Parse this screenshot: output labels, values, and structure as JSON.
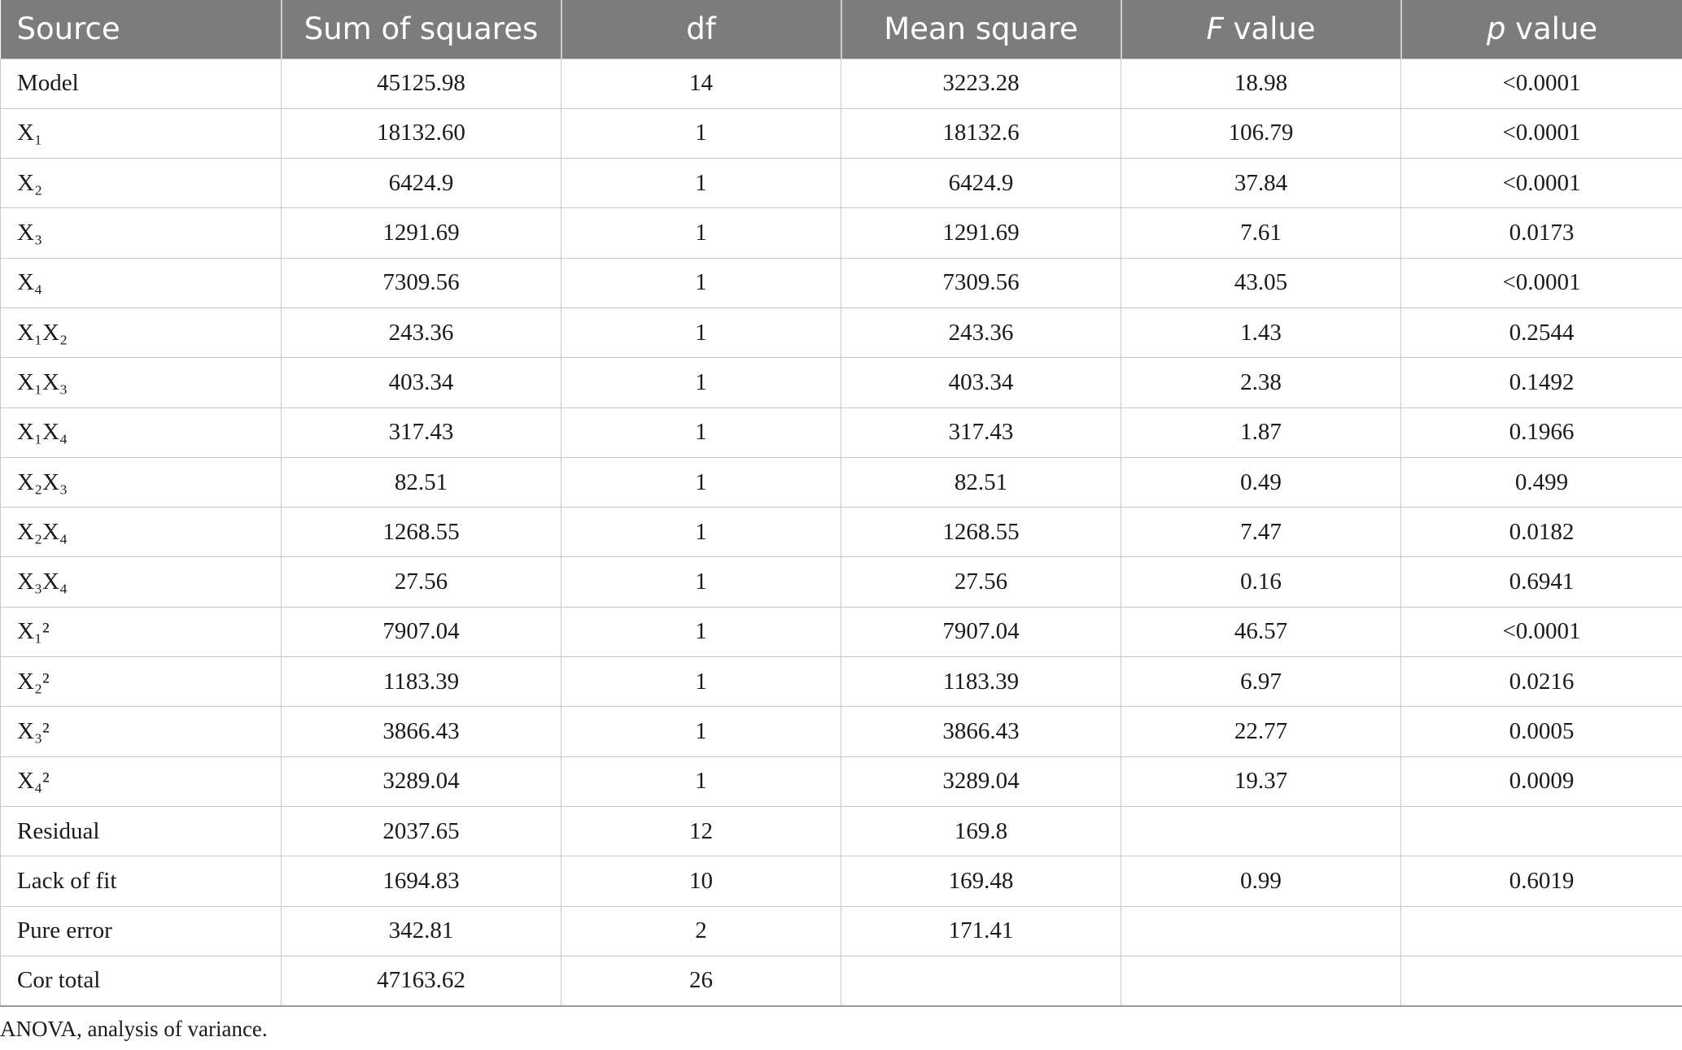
{
  "table": {
    "headers": {
      "source": "Source",
      "sum_of_squares": "Sum of squares",
      "df": "df",
      "mean_square": "Mean square",
      "f_italic": "F",
      "f_rest": " value",
      "p_italic": "p",
      "p_rest": " value"
    },
    "rows": [
      {
        "source": "Model",
        "ss": "45125.98",
        "df": "14",
        "ms": "3223.28",
        "f": "18.98",
        "p": "<0.0001"
      },
      {
        "source": "X₁",
        "ss": "18132.60",
        "df": "1",
        "ms": "18132.6",
        "f": "106.79",
        "p": "<0.0001"
      },
      {
        "source": "X₂",
        "ss": "6424.9",
        "df": "1",
        "ms": "6424.9",
        "f": "37.84",
        "p": "<0.0001"
      },
      {
        "source": "X₃",
        "ss": "1291.69",
        "df": "1",
        "ms": "1291.69",
        "f": "7.61",
        "p": "0.0173"
      },
      {
        "source": "X₄",
        "ss": "7309.56",
        "df": "1",
        "ms": "7309.56",
        "f": "43.05",
        "p": "<0.0001"
      },
      {
        "source": "X₁X₂",
        "ss": "243.36",
        "df": "1",
        "ms": "243.36",
        "f": "1.43",
        "p": "0.2544"
      },
      {
        "source": "X₁X₃",
        "ss": "403.34",
        "df": "1",
        "ms": "403.34",
        "f": "2.38",
        "p": "0.1492"
      },
      {
        "source": "X₁X₄",
        "ss": "317.43",
        "df": "1",
        "ms": "317.43",
        "f": "1.87",
        "p": "0.1966"
      },
      {
        "source": "X₂X₃",
        "ss": "82.51",
        "df": "1",
        "ms": "82.51",
        "f": "0.49",
        "p": "0.499"
      },
      {
        "source": "X₂X₄",
        "ss": "1268.55",
        "df": "1",
        "ms": "1268.55",
        "f": "7.47",
        "p": "0.0182"
      },
      {
        "source": "X₃X₄",
        "ss": "27.56",
        "df": "1",
        "ms": "27.56",
        "f": "0.16",
        "p": "0.6941"
      },
      {
        "source": "X₁²",
        "ss": "7907.04",
        "df": "1",
        "ms": "7907.04",
        "f": "46.57",
        "p": "<0.0001"
      },
      {
        "source": "X₂²",
        "ss": "1183.39",
        "df": "1",
        "ms": "1183.39",
        "f": "6.97",
        "p": "0.0216"
      },
      {
        "source": "X₃²",
        "ss": "3866.43",
        "df": "1",
        "ms": "3866.43",
        "f": "22.77",
        "p": "0.0005"
      },
      {
        "source": "X₄²",
        "ss": "3289.04",
        "df": "1",
        "ms": "3289.04",
        "f": "19.37",
        "p": "0.0009"
      },
      {
        "source": "Residual",
        "ss": "2037.65",
        "df": "12",
        "ms": "169.8",
        "f": "",
        "p": ""
      },
      {
        "source": "Lack of fit",
        "ss": "1694.83",
        "df": "10",
        "ms": "169.48",
        "f": "0.99",
        "p": "0.6019"
      },
      {
        "source": "Pure error",
        "ss": "342.81",
        "df": "2",
        "ms": "171.41",
        "f": "",
        "p": ""
      },
      {
        "source": "Cor total",
        "ss": "47163.62",
        "df": "26",
        "ms": "",
        "f": "",
        "p": ""
      }
    ]
  },
  "footnote": "ANOVA, analysis of variance.",
  "colors": {
    "header_bg": "#7c7c7c",
    "header_text": "#ffffff",
    "grid": "#c8c8c8"
  }
}
